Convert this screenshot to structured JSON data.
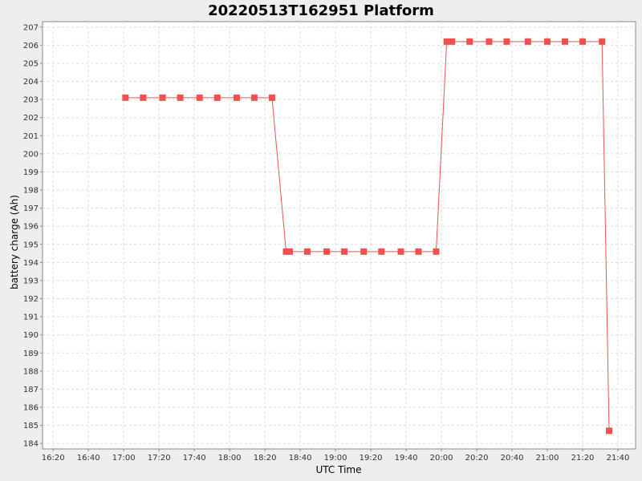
{
  "chart_data": {
    "type": "line",
    "title": "20220513T162951 Platform",
    "xlabel": "UTC Time",
    "ylabel": "battery charge (Ah)",
    "xlim": [
      "16:14",
      "21:50"
    ],
    "ylim": [
      183.7,
      207.3
    ],
    "x_ticks": [
      "16:20",
      "16:40",
      "17:00",
      "17:20",
      "17:40",
      "18:00",
      "18:20",
      "18:40",
      "19:00",
      "19:20",
      "19:40",
      "20:00",
      "20:20",
      "20:40",
      "21:00",
      "21:20",
      "21:40"
    ],
    "y_ticks": [
      184,
      185,
      186,
      187,
      188,
      189,
      190,
      191,
      192,
      193,
      194,
      195,
      196,
      197,
      198,
      199,
      200,
      201,
      202,
      203,
      204,
      205,
      206,
      207
    ],
    "grid": true,
    "series": [
      {
        "color": "#f05050",
        "marker": "square",
        "points": [
          {
            "x": "17:01",
            "y": 203.1
          },
          {
            "x": "17:11",
            "y": 203.1
          },
          {
            "x": "17:22",
            "y": 203.1
          },
          {
            "x": "17:32",
            "y": 203.1
          },
          {
            "x": "17:43",
            "y": 203.1
          },
          {
            "x": "17:53",
            "y": 203.1
          },
          {
            "x": "18:04",
            "y": 203.1
          },
          {
            "x": "18:14",
            "y": 203.1
          },
          {
            "x": "18:24",
            "y": 203.1
          },
          {
            "x": "18:32",
            "y": 194.6
          },
          {
            "x": "18:34",
            "y": 194.6
          },
          {
            "x": "18:44",
            "y": 194.6
          },
          {
            "x": "18:55",
            "y": 194.6
          },
          {
            "x": "19:05",
            "y": 194.6
          },
          {
            "x": "19:16",
            "y": 194.6
          },
          {
            "x": "19:26",
            "y": 194.6
          },
          {
            "x": "19:37",
            "y": 194.6
          },
          {
            "x": "19:47",
            "y": 194.6
          },
          {
            "x": "19:57",
            "y": 194.6
          },
          {
            "x": "20:03",
            "y": 206.2
          },
          {
            "x": "20:06",
            "y": 206.2
          },
          {
            "x": "20:16",
            "y": 206.2
          },
          {
            "x": "20:27",
            "y": 206.2
          },
          {
            "x": "20:37",
            "y": 206.2
          },
          {
            "x": "20:49",
            "y": 206.2
          },
          {
            "x": "21:00",
            "y": 206.2
          },
          {
            "x": "21:10",
            "y": 206.2
          },
          {
            "x": "21:20",
            "y": 206.2
          },
          {
            "x": "21:31",
            "y": 206.2
          },
          {
            "x": "21:35",
            "y": 184.7
          }
        ]
      }
    ]
  }
}
